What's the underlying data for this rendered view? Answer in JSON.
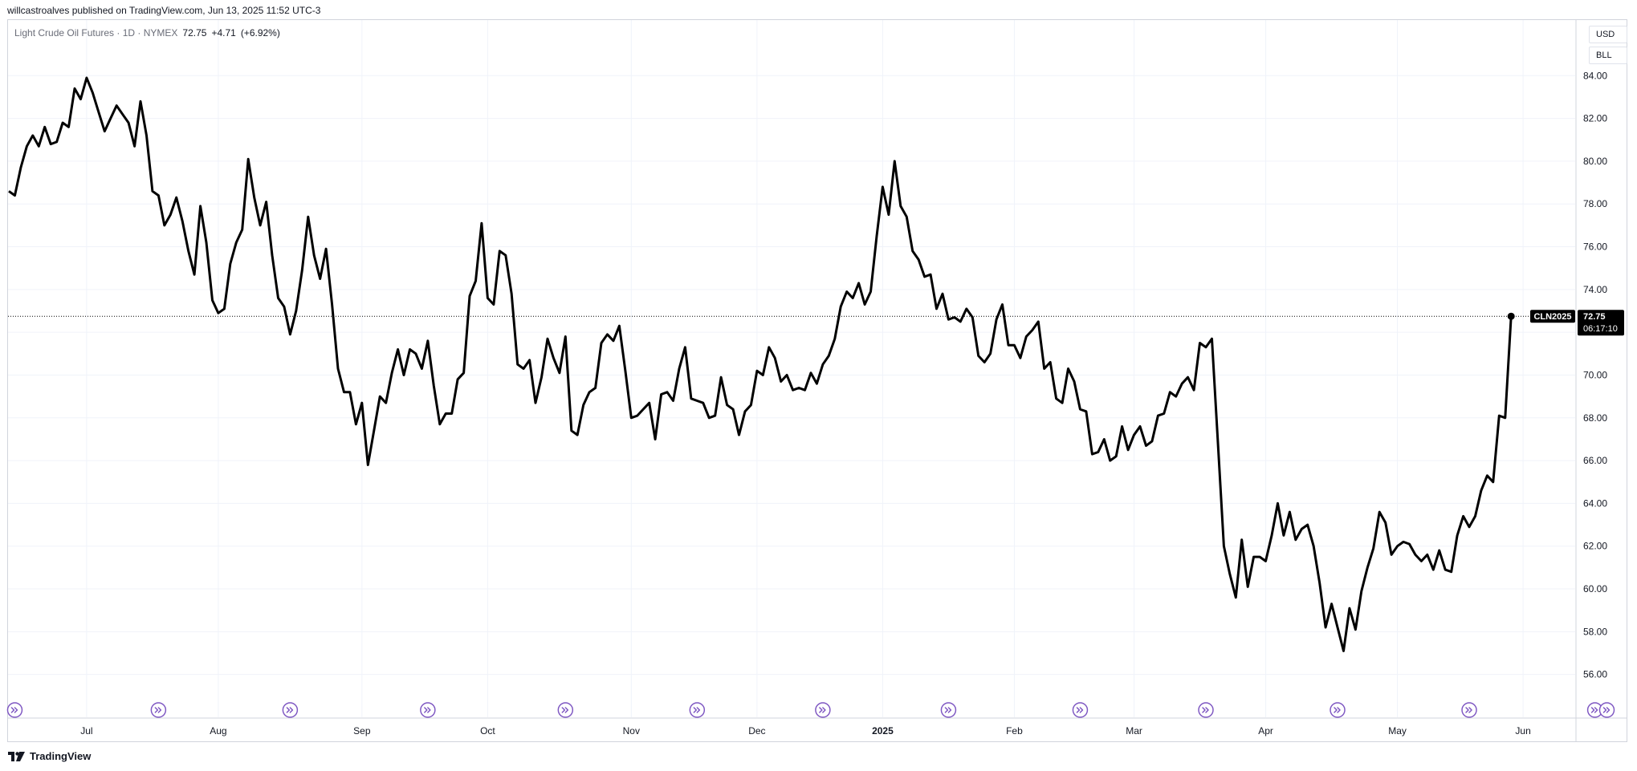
{
  "header": {
    "published_line": "willcastroalves published on TradingView.com, Jun 13, 2025 11:52 UTC-3"
  },
  "legend": {
    "symbol_name": "Light Crude Oil Futures · 1D · NYMEX",
    "last": "72.75",
    "change": "+4.71",
    "change_pct": "(+6.92%)"
  },
  "price_scale": {
    "currency_button": "USD",
    "unit_button": "BLL"
  },
  "price_label": {
    "ticker": "CLN2025",
    "price": "72.75",
    "countdown": "06:17:10"
  },
  "footer": {
    "brand": "TradingView"
  },
  "colors": {
    "line": "#000000",
    "grid": "#f0f3fa",
    "event_icon": "#7e57c2",
    "label_bg": "#000000"
  },
  "chart_data": {
    "type": "line",
    "title": "",
    "xlabel": "",
    "ylabel": "",
    "ylim": [
      54.0,
      86.6
    ],
    "y_ticks": [
      56,
      58,
      60,
      62,
      64,
      66,
      68,
      70,
      72,
      74,
      76,
      78,
      80,
      82,
      84
    ],
    "y_tick_labels": [
      "56.00",
      "58.00",
      "60.00",
      "62.00",
      "64.00",
      "66.00",
      "68.00",
      "70.00",
      "72.00",
      "74.00",
      "76.00",
      "78.00",
      "80.00",
      "82.00",
      "84.00"
    ],
    "x_ticks": [
      {
        "label": "Jul",
        "i": 13,
        "bold": false
      },
      {
        "label": "Aug",
        "i": 35,
        "bold": false
      },
      {
        "label": "Sep",
        "i": 59,
        "bold": false
      },
      {
        "label": "Oct",
        "i": 80,
        "bold": false
      },
      {
        "label": "Nov",
        "i": 104,
        "bold": false
      },
      {
        "label": "Dec",
        "i": 125,
        "bold": false
      },
      {
        "label": "2025",
        "i": 146,
        "bold": true
      },
      {
        "label": "Feb",
        "i": 168,
        "bold": false
      },
      {
        "label": "Mar",
        "i": 188,
        "bold": false
      },
      {
        "label": "Apr",
        "i": 210,
        "bold": false
      },
      {
        "label": "May",
        "i": 232,
        "bold": false
      },
      {
        "label": "Jun",
        "i": 253,
        "bold": false
      }
    ],
    "grid": true,
    "last_value": 72.75,
    "event_markers_i": [
      1,
      25,
      47,
      70,
      93,
      115,
      136,
      157,
      179,
      200,
      222,
      244,
      265,
      267
    ],
    "series": [
      {
        "values": [
          78.6,
          78.4,
          79.7,
          80.7,
          81.2,
          80.7,
          81.6,
          80.8,
          80.9,
          81.8,
          81.6,
          83.4,
          82.9,
          83.9,
          83.2,
          82.3,
          81.4,
          82.0,
          82.6,
          82.2,
          81.8,
          80.7,
          82.8,
          81.2,
          78.6,
          78.4,
          77.0,
          77.5,
          78.3,
          77.2,
          75.8,
          74.7,
          77.9,
          76.2,
          73.5,
          72.9,
          73.1,
          75.2,
          76.2,
          76.8,
          80.1,
          78.3,
          77.0,
          78.1,
          75.6,
          73.6,
          73.2,
          71.9,
          73.0,
          74.9,
          77.4,
          75.6,
          74.5,
          75.9,
          73.3,
          70.3,
          69.2,
          69.2,
          67.7,
          68.7,
          65.8,
          67.4,
          69.0,
          68.7,
          70.1,
          71.2,
          70.0,
          71.2,
          71.0,
          70.3,
          71.6,
          69.5,
          67.7,
          68.2,
          68.2,
          69.8,
          70.1,
          73.7,
          74.4,
          77.1,
          73.6,
          73.3,
          75.8,
          75.6,
          73.8,
          70.5,
          70.3,
          70.7,
          68.7,
          69.9,
          71.7,
          70.8,
          70.1,
          71.8,
          67.4,
          67.2,
          68.6,
          69.2,
          69.4,
          71.5,
          71.9,
          71.6,
          72.3,
          70.2,
          68.0,
          68.1,
          68.4,
          68.7,
          67.0,
          69.1,
          69.2,
          68.8,
          70.3,
          71.3,
          68.9,
          68.8,
          68.7,
          68.0,
          68.1,
          69.9,
          68.6,
          68.4,
          67.2,
          68.3,
          68.6,
          70.2,
          70.0,
          71.3,
          70.8,
          69.7,
          70.0,
          69.3,
          69.4,
          69.3,
          70.1,
          69.6,
          70.5,
          70.9,
          71.7,
          73.2,
          73.9,
          73.6,
          74.3,
          73.3,
          73.9,
          76.5,
          78.8,
          77.5,
          80.0,
          77.9,
          77.4,
          75.8,
          75.4,
          74.6,
          74.7,
          73.1,
          73.8,
          72.6,
          72.7,
          72.5,
          73.1,
          72.7,
          70.9,
          70.6,
          71.0,
          72.6,
          73.3,
          71.4,
          71.4,
          70.8,
          71.8,
          72.1,
          72.5,
          70.3,
          70.6,
          68.9,
          68.7,
          70.3,
          69.7,
          68.4,
          68.3,
          66.3,
          66.4,
          67.0,
          66.0,
          66.2,
          67.6,
          66.5,
          67.2,
          67.6,
          66.7,
          66.9,
          68.1,
          68.2,
          69.2,
          69.0,
          69.6,
          69.9,
          69.3,
          71.5,
          71.3,
          71.7,
          66.9,
          62.0,
          60.7,
          59.6,
          62.3,
          60.1,
          61.5,
          61.5,
          61.3,
          62.5,
          64.0,
          62.5,
          63.6,
          62.3,
          62.8,
          63.0,
          62.0,
          60.3,
          58.2,
          59.3,
          58.2,
          57.1,
          59.1,
          58.1,
          59.9,
          61.0,
          61.9,
          63.6,
          63.1,
          61.6,
          62.0,
          62.2,
          62.1,
          61.6,
          61.3,
          61.6,
          60.9,
          61.8,
          60.9,
          60.8,
          62.5,
          63.4,
          62.9,
          63.4,
          64.6,
          65.3,
          65.0,
          68.1,
          68.0,
          72.75
        ]
      }
    ]
  }
}
